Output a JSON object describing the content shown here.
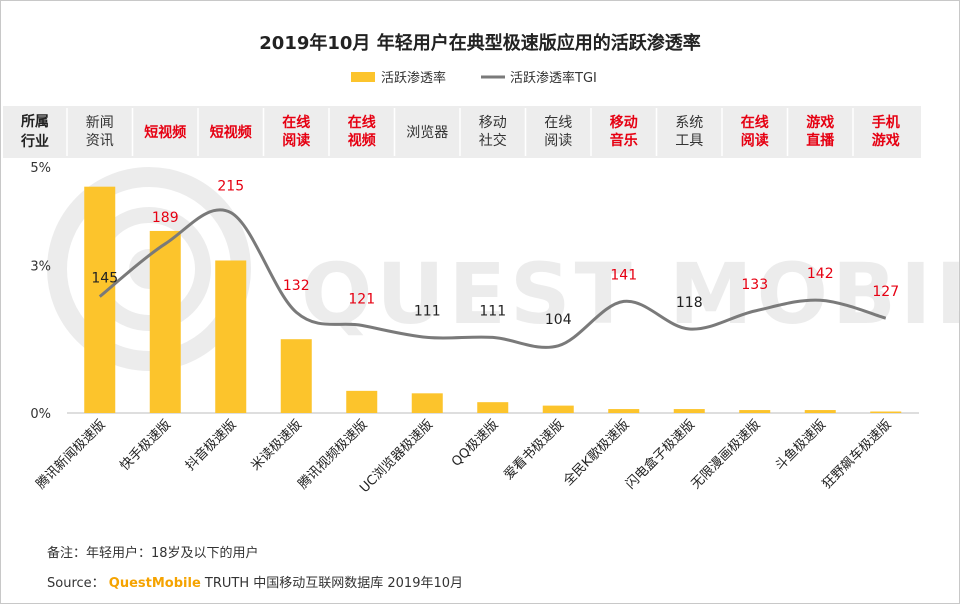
{
  "chart_data": {
    "type": "bar+line",
    "title": "2019年10月 年轻用户在典型极速版应用的活跃渗透率",
    "legend": [
      {
        "name": "活跃渗透率",
        "kind": "bar",
        "color": "#fcc42c"
      },
      {
        "name": "活跃渗透率TGI",
        "kind": "line",
        "color": "#7a7a7a"
      }
    ],
    "header_label": [
      "所属",
      "行业"
    ],
    "industries": [
      {
        "lines": [
          "新闻",
          "资讯"
        ],
        "highlight": false
      },
      {
        "lines": [
          "短视频"
        ],
        "highlight": true
      },
      {
        "lines": [
          "短视频"
        ],
        "highlight": true
      },
      {
        "lines": [
          "在线",
          "阅读"
        ],
        "highlight": true
      },
      {
        "lines": [
          "在线",
          "视频"
        ],
        "highlight": true
      },
      {
        "lines": [
          "浏览器"
        ],
        "highlight": false
      },
      {
        "lines": [
          "移动",
          "社交"
        ],
        "highlight": false
      },
      {
        "lines": [
          "在线",
          "阅读"
        ],
        "highlight": false
      },
      {
        "lines": [
          "移动",
          "音乐"
        ],
        "highlight": true
      },
      {
        "lines": [
          "系统",
          "工具"
        ],
        "highlight": false
      },
      {
        "lines": [
          "在线",
          "阅读"
        ],
        "highlight": true
      },
      {
        "lines": [
          "游戏",
          "直播"
        ],
        "highlight": true
      },
      {
        "lines": [
          "手机",
          "游戏"
        ],
        "highlight": true
      }
    ],
    "categories": [
      "腾讯新闻极速版",
      "快手极速版",
      "抖音极速版",
      "米读极速版",
      "腾讯视频极速版",
      "UC浏览器极速版",
      "QQ极速版",
      "爱看书极速版",
      "全民K歌极速版",
      "闪电盒子极速版",
      "无限漫画极速版",
      "斗鱼极速版",
      "狂野飙车极速版"
    ],
    "series": [
      {
        "name": "活跃渗透率",
        "unit": "%",
        "values": [
          4.6,
          3.7,
          3.1,
          1.5,
          0.45,
          0.4,
          0.22,
          0.15,
          0.08,
          0.08,
          0.06,
          0.06,
          0.03
        ]
      },
      {
        "name": "活跃渗透率TGI",
        "values": [
          145,
          189,
          215,
          132,
          121,
          111,
          111,
          104,
          141,
          118,
          133,
          142,
          127
        ],
        "label_colors": [
          "#222222",
          "#e60012",
          "#e60012",
          "#e60012",
          "#e60012",
          "#222222",
          "#222222",
          "#222222",
          "#e60012",
          "#222222",
          "#e60012",
          "#e60012",
          "#e60012"
        ]
      }
    ],
    "y_ticks": [
      "0%",
      "3%",
      "5%"
    ],
    "y_tick_values": [
      0,
      3,
      5
    ],
    "ylim": [
      0,
      5
    ],
    "bar_color": "#fcc42c",
    "line_color": "#7a7a7a",
    "highlight_color": "#e60012",
    "header_bg": "#ededed"
  },
  "watermark": "QUEST MOBILE",
  "footer": {
    "note": "备注：年轻用户：18岁及以下的用户",
    "source_prefix": "Source：",
    "source_brand": "QuestMobile",
    "source_rest": "TRUTH 中国移动互联网数据库 2019年10月"
  }
}
